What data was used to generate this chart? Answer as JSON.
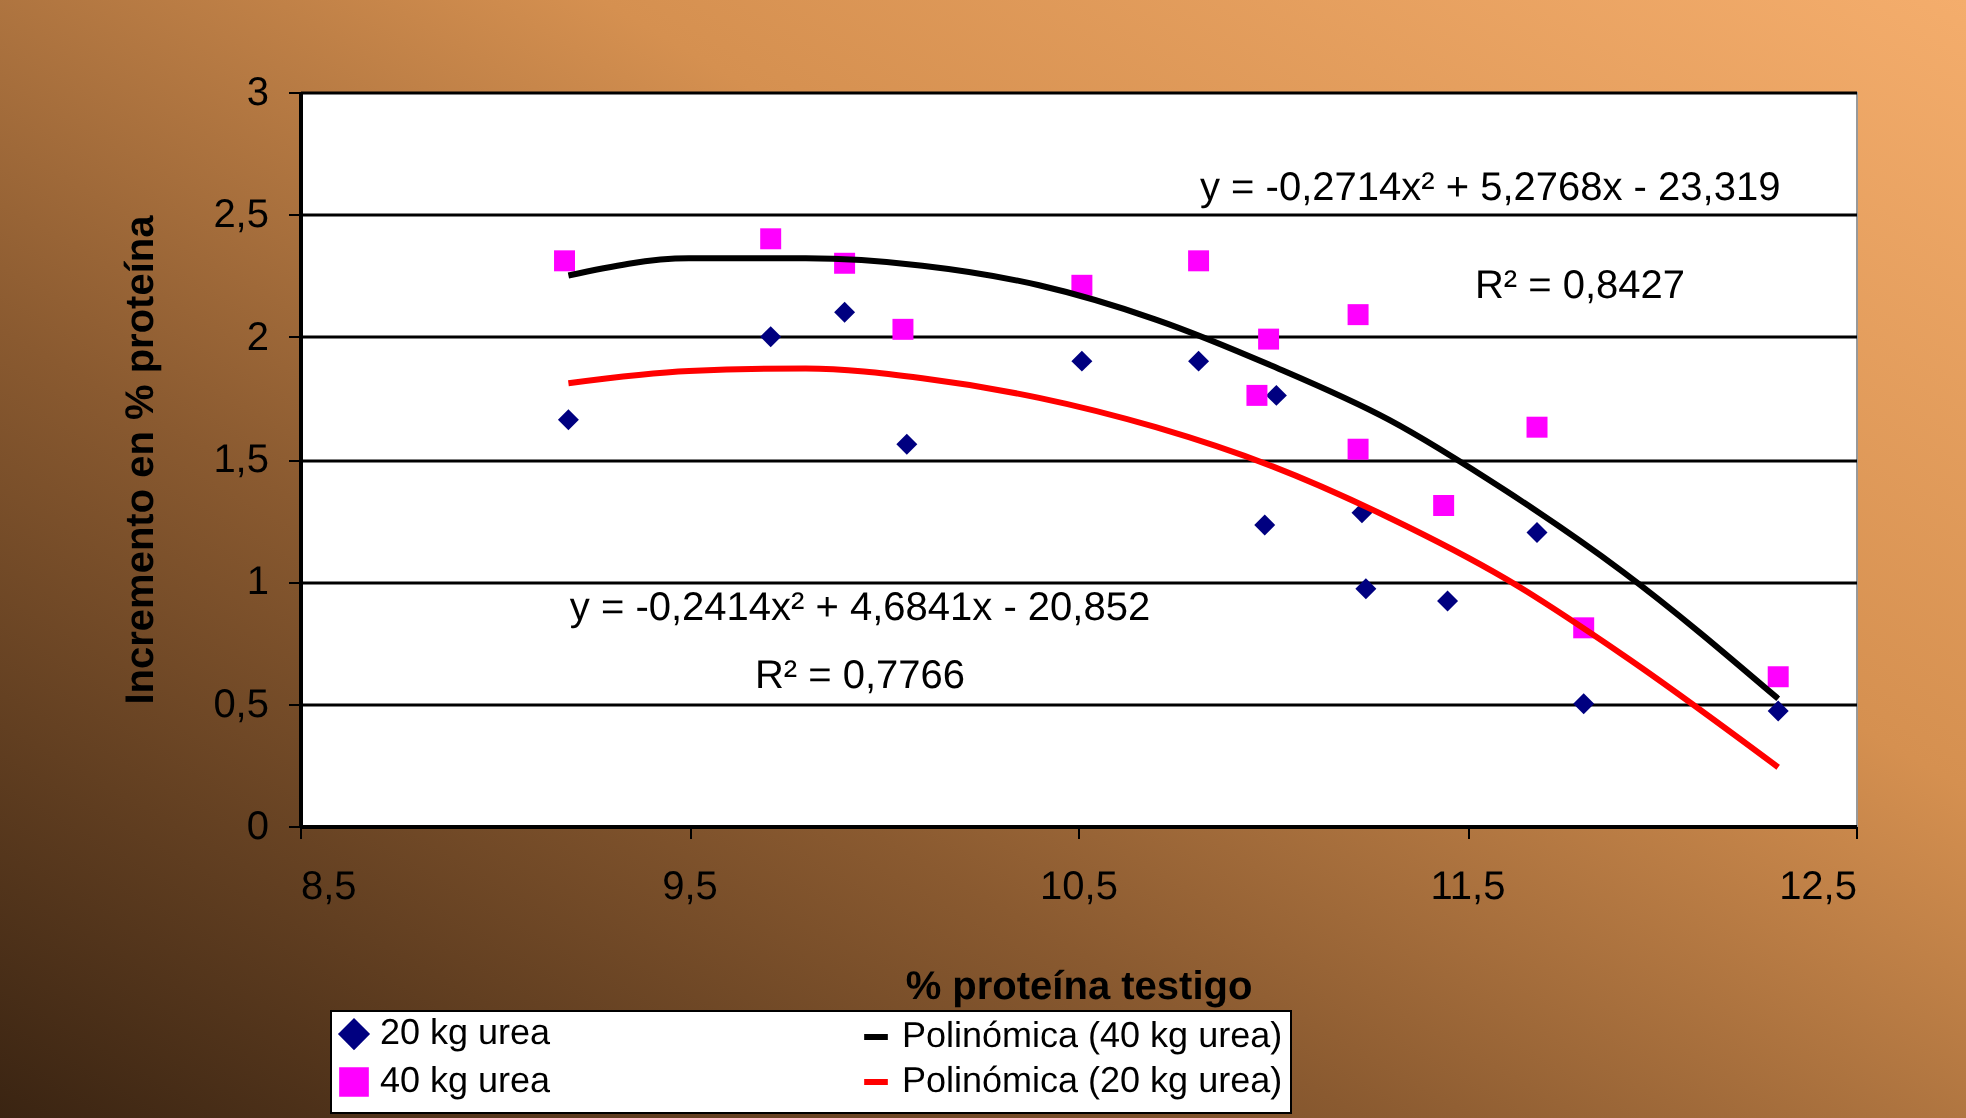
{
  "chart_data": {
    "type": "scatter",
    "xlabel": "% proteína testigo",
    "ylabel": "Incremento en % proteína",
    "xlim": [
      8.5,
      12.5
    ],
    "xticks": [
      {
        "value": 8.5,
        "label": "8,5"
      },
      {
        "value": 9.5,
        "label": "9,5"
      },
      {
        "value": 10.5,
        "label": "10,5"
      },
      {
        "value": 11.5,
        "label": "11,5"
      },
      {
        "value": 12.5,
        "label": "12,5"
      }
    ],
    "ylim": [
      0,
      3
    ],
    "yticks": [
      0,
      {
        "value": 0.5,
        "label": "0,5"
      },
      1,
      {
        "value": 1.5,
        "label": "1,5"
      },
      2,
      {
        "value": 2.5,
        "label": "2,5"
      },
      3
    ],
    "grid": "y",
    "legend": "bottom",
    "series": [
      {
        "name": "20 kg urea",
        "marker": "diamond",
        "color": "#000080",
        "x": [
          9.19,
          9.71,
          9.9,
          10.06,
          10.51,
          10.81,
          11.01,
          10.98,
          11.23,
          11.24,
          11.45,
          11.68,
          11.8,
          12.3
        ],
        "values": [
          1.66,
          2.0,
          2.1,
          1.56,
          1.9,
          1.9,
          1.76,
          1.23,
          1.28,
          0.97,
          0.92,
          1.2,
          0.5,
          0.47
        ]
      },
      {
        "name": "40 kg urea",
        "marker": "square",
        "color": "#ff00ff",
        "x": [
          9.18,
          9.71,
          9.9,
          10.05,
          10.51,
          10.81,
          10.96,
          10.99,
          11.22,
          11.22,
          11.44,
          11.68,
          11.8,
          12.3
        ],
        "values": [
          2.31,
          2.4,
          2.3,
          2.03,
          2.21,
          2.31,
          1.76,
          1.99,
          2.09,
          1.54,
          1.31,
          1.63,
          0.81,
          0.61
        ]
      },
      {
        "name": "Polinómica (40 kg urea)",
        "type": "line",
        "marker": "none",
        "color": "#000000",
        "x": [
          9.19,
          9.5,
          9.8,
          10.1,
          10.4,
          10.7,
          11.0,
          11.3,
          11.6,
          11.9,
          12.3
        ],
        "values": [
          2.25,
          2.32,
          2.32,
          2.29,
          2.21,
          2.07,
          1.88,
          1.66,
          1.37,
          1.04,
          0.52
        ]
      },
      {
        "name": "Polinómica (20 kg urea)",
        "type": "line",
        "marker": "none",
        "color": "#ff0000",
        "x": [
          9.19,
          9.5,
          9.8,
          10.1,
          10.4,
          10.7,
          11.0,
          11.3,
          11.6,
          11.9,
          12.3
        ],
        "values": [
          1.81,
          1.86,
          1.87,
          1.83,
          1.75,
          1.63,
          1.47,
          1.26,
          1.01,
          0.7,
          0.24
        ]
      }
    ],
    "annotations": [
      "y = -0,2714x² + 5,2768x - 23,319",
      "R² = 0,8427",
      "y = -0,2414x² + 4,6841x - 20,852",
      "R² = 0,7766"
    ]
  }
}
